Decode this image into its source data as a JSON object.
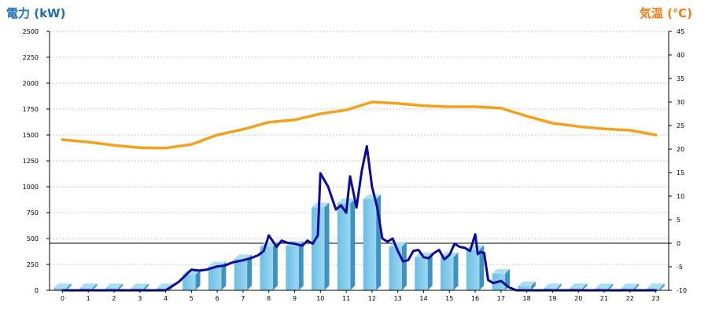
{
  "chart_data": {
    "type": "bar",
    "left_axis": {
      "label": "電力 (kW)",
      "ylim": [
        0,
        2500
      ],
      "ticks": [
        0,
        250,
        500,
        750,
        1000,
        1250,
        1500,
        1750,
        2000,
        2250,
        2500
      ],
      "color": "#1f6fb2"
    },
    "right_axis": {
      "label": "気温 (℃)",
      "ylim": [
        -10,
        45
      ],
      "ticks": [
        -10,
        -5,
        0,
        5,
        10,
        15,
        20,
        25,
        30,
        35,
        40,
        45
      ],
      "color": "#f07c12"
    },
    "categories": [
      "0",
      "1",
      "2",
      "3",
      "4",
      "5",
      "6",
      "7",
      "8",
      "9",
      "10",
      "11",
      "12",
      "13",
      "14",
      "15",
      "16",
      "17",
      "18",
      "19",
      "20",
      "21",
      "22",
      "23"
    ],
    "grid": true,
    "series": [
      {
        "type": "bar",
        "axis": "left",
        "color": "#7ec8ea",
        "values": [
          20,
          20,
          20,
          20,
          20,
          150,
          230,
          300,
          420,
          430,
          800,
          840,
          880,
          420,
          320,
          320,
          390,
          160,
          40,
          20,
          20,
          20,
          20,
          20
        ]
      },
      {
        "type": "line",
        "axis": "left",
        "color": "#0a0a9a",
        "x": [
          0,
          1,
          2,
          3,
          4,
          4.5,
          5,
          5.3,
          5.6,
          6,
          6.3,
          6.6,
          7,
          7.3,
          7.6,
          7.8,
          8,
          8.3,
          8.5,
          8.7,
          9,
          9.3,
          9.5,
          9.7,
          9.9,
          10,
          10.3,
          10.6,
          10.8,
          11,
          11.15,
          11.4,
          11.6,
          11.8,
          12,
          12.2,
          12.4,
          12.6,
          12.8,
          13,
          13.2,
          13.4,
          13.6,
          13.8,
          14,
          14.2,
          14.4,
          14.6,
          14.8,
          15,
          15.2,
          15.4,
          15.6,
          15.8,
          16,
          16.1,
          16.2,
          16.35,
          16.5,
          16.7,
          17,
          17.3,
          17.6,
          17.8,
          18,
          19,
          20,
          21,
          22,
          23
        ],
        "values": [
          0,
          0,
          0,
          0,
          0,
          80,
          200,
          190,
          200,
          230,
          240,
          270,
          290,
          310,
          340,
          380,
          530,
          420,
          480,
          460,
          450,
          430,
          480,
          450,
          530,
          1130,
          1000,
          780,
          820,
          750,
          1100,
          800,
          1150,
          1390,
          1000,
          800,
          500,
          470,
          500,
          380,
          280,
          290,
          380,
          390,
          320,
          310,
          360,
          390,
          300,
          340,
          450,
          420,
          410,
          380,
          540,
          350,
          370,
          360,
          100,
          70,
          90,
          30,
          0,
          0,
          0,
          0,
          0,
          0,
          0,
          0
        ]
      },
      {
        "type": "line",
        "axis": "right",
        "color": "#f5a01a",
        "x": [
          0,
          1,
          2,
          3,
          4,
          5,
          6,
          7,
          8,
          9,
          10,
          11,
          12,
          13,
          14,
          15,
          16,
          17,
          18,
          19,
          20,
          21,
          22,
          23
        ],
        "values": [
          22,
          21.5,
          20.8,
          20.3,
          20.2,
          21,
          23,
          24.2,
          25.7,
          26.2,
          27.5,
          28.3,
          30,
          29.7,
          29.2,
          29,
          29,
          28.7,
          27,
          25.5,
          24.8,
          24.3,
          24,
          23
        ]
      }
    ]
  }
}
